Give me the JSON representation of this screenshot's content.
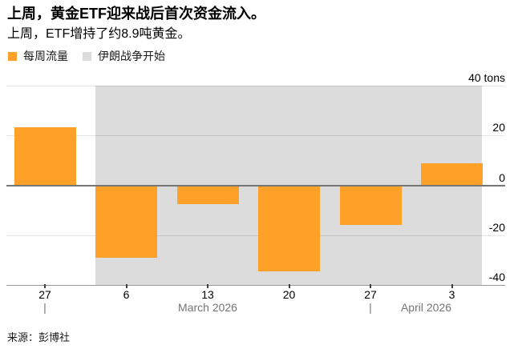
{
  "header": {
    "title": "上周，黄金ETF迎来战后首次资金流入。",
    "subtitle": "上周，ETF增持了约8.9吨黄金。"
  },
  "legend": {
    "items": [
      {
        "label": "每周流量",
        "color": "#FFA028"
      },
      {
        "label": "伊朗战争开始",
        "color": "#DCDCDC"
      }
    ]
  },
  "chart_data": {
    "type": "bar",
    "title": "上周，黄金ETF迎来战后首次资金流入。",
    "subtitle": "上周，ETF增持了约8.9吨黄金。",
    "unit": "tons",
    "categories": [
      "27",
      "6",
      "13",
      "20",
      "27",
      "3"
    ],
    "values": [
      23.5,
      -29,
      -7.5,
      -34.5,
      -16,
      8.9
    ],
    "bar_color": "#FFA028",
    "y_ticks": [
      40,
      20,
      0,
      -20,
      -40
    ],
    "y_tick_labels": [
      "40 tons",
      "20",
      "0",
      "-20",
      "-40"
    ],
    "ylim": [
      -40,
      40
    ],
    "grid": true,
    "legend_position": "top-left",
    "shaded_region": {
      "label": "伊朗战争开始",
      "color": "#DCDCDC",
      "from_category_index": 1,
      "to": "right-edge"
    },
    "x_axis": {
      "month_separator_char": "|",
      "month_groups": [
        {
          "label": "March 2026",
          "separator_at_index": 0
        },
        {
          "label": "April 2026",
          "separator_at_index": 4
        }
      ]
    }
  },
  "footer": {
    "source": "来源：彭博社"
  }
}
